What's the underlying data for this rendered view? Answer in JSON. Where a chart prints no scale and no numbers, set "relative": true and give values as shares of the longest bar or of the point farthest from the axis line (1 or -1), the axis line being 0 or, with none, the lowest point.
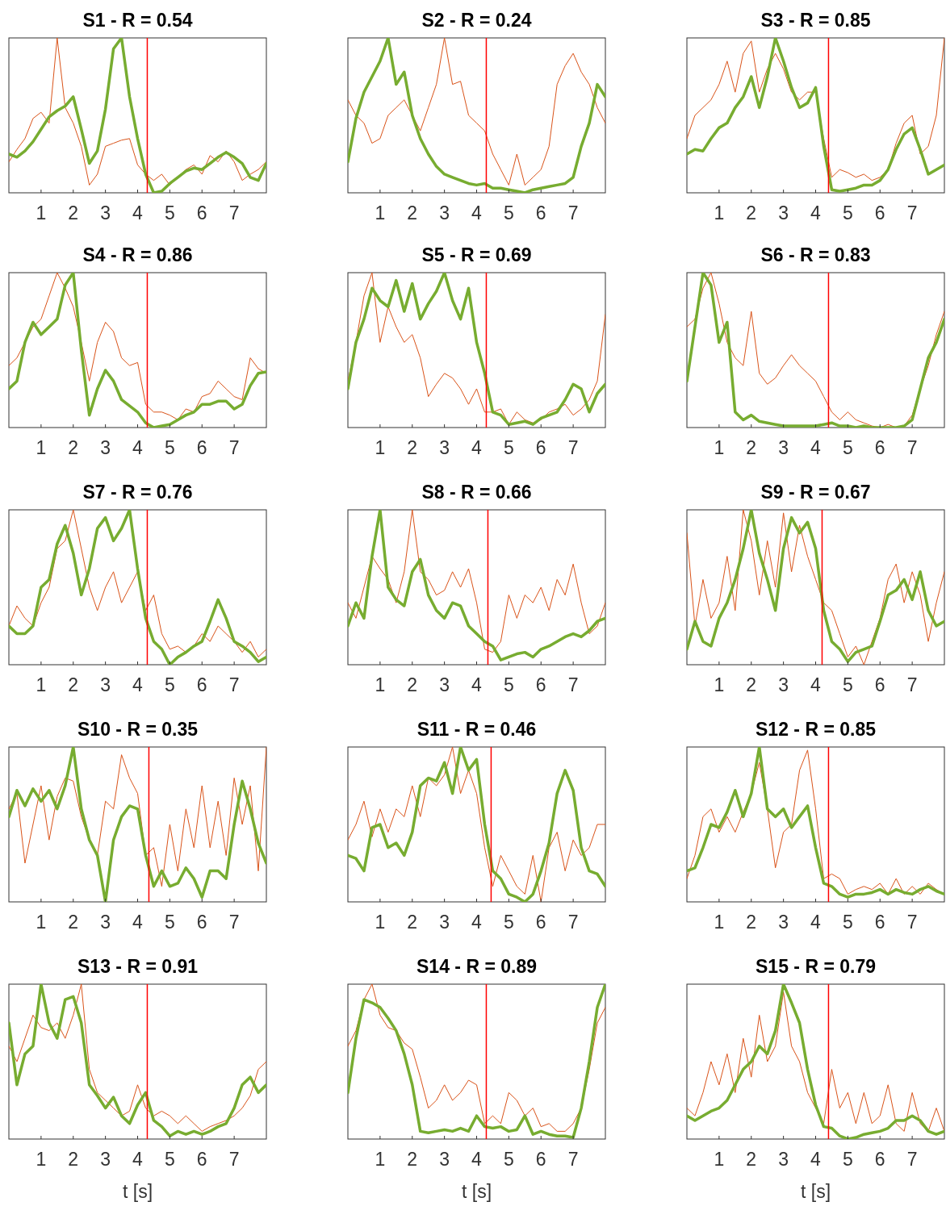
{
  "chart_data": [
    {
      "type": "line",
      "title": "S1 - R = 0.54",
      "relative": true,
      "xlim": [
        0,
        8
      ],
      "xticks": [
        1,
        2,
        3,
        4,
        5,
        6,
        7
      ],
      "ref_lines": [
        {
          "axis": "x",
          "value": 4.3,
          "color": "#ff0000"
        }
      ],
      "x": [
        0,
        0.25,
        0.5,
        0.75,
        1,
        1.25,
        1.5,
        1.75,
        2,
        2.25,
        2.5,
        2.75,
        3,
        3.25,
        3.5,
        3.75,
        4,
        4.25,
        4.5,
        4.75,
        5,
        5.25,
        5.5,
        5.75,
        6,
        6.25,
        6.5,
        6.75,
        7,
        7.25,
        7.5,
        7.75,
        8
      ],
      "series": [
        {
          "color": "#d95319",
          "values": [
            0.2,
            0.28,
            0.35,
            0.48,
            0.52,
            0.45,
            1.0,
            0.55,
            0.45,
            0.3,
            0.05,
            0.12,
            0.3,
            0.32,
            0.34,
            0.35,
            0.18,
            0.12,
            0.08,
            0.12,
            0.05,
            0.1,
            0.15,
            0.18,
            0.12,
            0.24,
            0.2,
            0.27,
            0.2,
            0.08,
            0.12,
            0.15,
            0.2
          ]
        },
        {
          "color": "#77ac30",
          "values": [
            0.25,
            0.23,
            0.27,
            0.33,
            0.41,
            0.49,
            0.53,
            0.56,
            0.62,
            0.41,
            0.19,
            0.27,
            0.54,
            0.93,
            1.0,
            0.62,
            0.35,
            0.12,
            0,
            0.01,
            0.06,
            0.1,
            0.14,
            0.16,
            0.15,
            0.19,
            0.23,
            0.26,
            0.23,
            0.19,
            0.1,
            0.08,
            0.19
          ]
        }
      ]
    },
    {
      "type": "line",
      "title": "S2 - R = 0.24",
      "relative": true,
      "xlim": [
        0,
        8
      ],
      "xticks": [
        1,
        2,
        3,
        4,
        5,
        6,
        7
      ],
      "ref_lines": [
        {
          "axis": "x",
          "value": 4.3,
          "color": "#ff0000"
        }
      ],
      "x": [
        0,
        0.25,
        0.5,
        0.75,
        1,
        1.25,
        1.5,
        1.75,
        2,
        2.25,
        2.5,
        2.75,
        3,
        3.25,
        3.5,
        3.75,
        4,
        4.25,
        4.5,
        4.75,
        5,
        5.25,
        5.5,
        5.75,
        6,
        6.25,
        6.5,
        6.75,
        7,
        7.25,
        7.5,
        7.75,
        8
      ],
      "series": [
        {
          "color": "#d95319",
          "values": [
            0.6,
            0.5,
            0.45,
            0.32,
            0.35,
            0.5,
            0.55,
            0.6,
            0.5,
            0.4,
            0.55,
            0.7,
            1.0,
            0.7,
            0.72,
            0.5,
            0.45,
            0.4,
            0.25,
            0.15,
            0.05,
            0.25,
            0.05,
            0.1,
            0.15,
            0.3,
            0.7,
            0.82,
            0.9,
            0.78,
            0.7,
            0.55,
            0.45
          ]
        },
        {
          "color": "#77ac30",
          "values": [
            0.2,
            0.48,
            0.65,
            0.75,
            0.85,
            1.0,
            0.7,
            0.78,
            0.5,
            0.35,
            0.25,
            0.17,
            0.12,
            0.1,
            0.08,
            0.06,
            0.05,
            0.06,
            0.03,
            0.03,
            0.02,
            0.01,
            0,
            0.02,
            0.03,
            0.04,
            0.05,
            0.06,
            0.1,
            0.3,
            0.45,
            0.7,
            0.62
          ]
        }
      ]
    },
    {
      "type": "line",
      "title": "S3 - R = 0.85",
      "relative": true,
      "xlim": [
        0,
        8
      ],
      "xticks": [
        1,
        2,
        3,
        4,
        5,
        6,
        7
      ],
      "ref_lines": [
        {
          "axis": "x",
          "value": 4.4,
          "color": "#ff0000"
        }
      ],
      "x": [
        0,
        0.25,
        0.5,
        0.75,
        1,
        1.25,
        1.5,
        1.75,
        2,
        2.25,
        2.5,
        2.75,
        3,
        3.25,
        3.5,
        3.75,
        4,
        4.25,
        4.5,
        4.75,
        5,
        5.25,
        5.5,
        5.75,
        6,
        6.25,
        6.5,
        6.75,
        7,
        7.25,
        7.5,
        7.75,
        8
      ],
      "series": [
        {
          "color": "#d95319",
          "values": [
            0.35,
            0.5,
            0.55,
            0.6,
            0.7,
            0.85,
            0.65,
            0.9,
            0.98,
            0.65,
            0.8,
            0.9,
            0.8,
            0.65,
            0.6,
            0.65,
            0.65,
            0.35,
            0.1,
            0.15,
            0.13,
            0.1,
            0.12,
            0.08,
            0.1,
            0.15,
            0.32,
            0.45,
            0.5,
            0.25,
            0.3,
            0.5,
            1.0
          ]
        },
        {
          "color": "#77ac30",
          "values": [
            0.25,
            0.28,
            0.27,
            0.35,
            0.42,
            0.45,
            0.55,
            0.62,
            0.75,
            0.55,
            0.75,
            1.0,
            0.85,
            0.68,
            0.55,
            0.58,
            0.68,
            0.3,
            0.02,
            0.01,
            0.02,
            0.03,
            0.05,
            0.05,
            0.08,
            0.15,
            0.28,
            0.38,
            0.42,
            0.28,
            0.12,
            0.15,
            0.18
          ]
        }
      ]
    },
    {
      "type": "line",
      "title": "S4 - R = 0.86",
      "relative": true,
      "xlim": [
        0,
        8
      ],
      "xticks": [
        1,
        2,
        3,
        4,
        5,
        6,
        7
      ],
      "ref_lines": [
        {
          "axis": "x",
          "value": 4.3,
          "color": "#ff0000"
        }
      ],
      "x": [
        0,
        0.25,
        0.5,
        0.75,
        1,
        1.25,
        1.5,
        1.75,
        2,
        2.25,
        2.5,
        2.75,
        3,
        3.25,
        3.5,
        3.75,
        4,
        4.25,
        4.5,
        4.75,
        5,
        5.25,
        5.5,
        5.75,
        6,
        6.25,
        6.5,
        6.75,
        7,
        7.25,
        7.5,
        7.75,
        8
      ],
      "series": [
        {
          "color": "#d95319",
          "values": [
            0.4,
            0.45,
            0.55,
            0.65,
            0.7,
            0.85,
            1.0,
            0.9,
            0.78,
            0.55,
            0.3,
            0.55,
            0.68,
            0.62,
            0.45,
            0.4,
            0.42,
            0.15,
            0.1,
            0.1,
            0.08,
            0.05,
            0.12,
            0.1,
            0.2,
            0.22,
            0.3,
            0.25,
            0.2,
            0.18,
            0.45,
            0.38,
            0.35
          ]
        },
        {
          "color": "#77ac30",
          "values": [
            0.25,
            0.3,
            0.55,
            0.68,
            0.6,
            0.65,
            0.7,
            0.92,
            1.0,
            0.5,
            0.08,
            0.25,
            0.37,
            0.3,
            0.18,
            0.14,
            0.1,
            0.03,
            0,
            0.01,
            0.02,
            0.05,
            0.08,
            0.1,
            0.15,
            0.15,
            0.17,
            0.17,
            0.12,
            0.15,
            0.27,
            0.35,
            0.36
          ]
        }
      ]
    },
    {
      "type": "line",
      "title": "S5 - R = 0.69",
      "relative": true,
      "xlim": [
        0,
        8
      ],
      "xticks": [
        1,
        2,
        3,
        4,
        5,
        6,
        7
      ],
      "ref_lines": [
        {
          "axis": "x",
          "value": 4.3,
          "color": "#ff0000"
        }
      ],
      "x": [
        0,
        0.25,
        0.5,
        0.75,
        1,
        1.25,
        1.5,
        1.75,
        2,
        2.25,
        2.5,
        2.75,
        3,
        3.25,
        3.5,
        3.75,
        4,
        4.25,
        4.5,
        4.75,
        5,
        5.25,
        5.5,
        5.75,
        6,
        6.25,
        6.5,
        6.75,
        7,
        7.25,
        7.5,
        7.75,
        8
      ],
      "series": [
        {
          "color": "#d95319",
          "values": [
            0.3,
            0.55,
            0.85,
            1.0,
            0.55,
            0.78,
            0.65,
            0.55,
            0.6,
            0.45,
            0.2,
            0.28,
            0.35,
            0.32,
            0.25,
            0.15,
            0.25,
            0.1,
            0.1,
            0.12,
            0.02,
            0.1,
            0.05,
            0.03,
            0.05,
            0.1,
            0.12,
            0.15,
            0.08,
            0.12,
            0.18,
            0.3,
            0.73
          ]
        },
        {
          "color": "#77ac30",
          "values": [
            0.25,
            0.55,
            0.7,
            0.9,
            0.82,
            0.78,
            0.95,
            0.75,
            0.93,
            0.7,
            0.8,
            0.88,
            1.0,
            0.82,
            0.7,
            0.9,
            0.55,
            0.35,
            0.1,
            0.08,
            0.02,
            0.03,
            0.04,
            0.02,
            0.06,
            0.08,
            0.1,
            0.18,
            0.28,
            0.25,
            0.1,
            0.22,
            0.28
          ]
        }
      ]
    },
    {
      "type": "line",
      "title": "S6 - R = 0.83",
      "relative": true,
      "xlim": [
        0,
        8
      ],
      "xticks": [
        1,
        2,
        3,
        4,
        5,
        6,
        7
      ],
      "ref_lines": [
        {
          "axis": "x",
          "value": 4.4,
          "color": "#ff0000"
        }
      ],
      "x": [
        0,
        0.25,
        0.5,
        0.75,
        1,
        1.25,
        1.5,
        1.75,
        2,
        2.25,
        2.5,
        2.75,
        3,
        3.25,
        3.5,
        3.75,
        4,
        4.25,
        4.5,
        4.75,
        5,
        5.25,
        5.5,
        5.75,
        6,
        6.25,
        6.5,
        6.75,
        7,
        7.25,
        7.5,
        7.75,
        8
      ],
      "series": [
        {
          "color": "#d95319",
          "values": [
            0.65,
            0.7,
            0.9,
            1.0,
            0.8,
            0.55,
            0.45,
            0.4,
            0.75,
            0.35,
            0.28,
            0.32,
            0.4,
            0.47,
            0.4,
            0.35,
            0.3,
            0.2,
            0.1,
            0.05,
            0.1,
            0.05,
            0.03,
            0.01,
            0,
            0.02,
            0,
            0.01,
            0.08,
            0.25,
            0.4,
            0.6,
            0.75
          ]
        },
        {
          "color": "#77ac30",
          "values": [
            0.3,
            0.65,
            1.0,
            0.92,
            0.55,
            0.68,
            0.1,
            0.05,
            0.08,
            0.04,
            0.03,
            0.02,
            0.01,
            0.01,
            0.01,
            0.01,
            0.01,
            0.02,
            0.03,
            0.01,
            0.01,
            0,
            0.01,
            0,
            0,
            0,
            0,
            0.01,
            0.05,
            0.25,
            0.45,
            0.55,
            0.7
          ]
        }
      ]
    },
    {
      "type": "line",
      "title": "S7 - R = 0.76",
      "relative": true,
      "xlim": [
        0,
        8
      ],
      "xticks": [
        1,
        2,
        3,
        4,
        5,
        6,
        7
      ],
      "ref_lines": [
        {
          "axis": "x",
          "value": 4.3,
          "color": "#ff0000"
        }
      ],
      "x": [
        0,
        0.25,
        0.5,
        0.75,
        1,
        1.25,
        1.5,
        1.75,
        2,
        2.25,
        2.5,
        2.75,
        3,
        3.25,
        3.5,
        3.75,
        4,
        4.25,
        4.5,
        4.75,
        5,
        5.25,
        5.5,
        5.75,
        6,
        6.25,
        6.5,
        6.75,
        7,
        7.25,
        7.5,
        7.75,
        8
      ],
      "series": [
        {
          "color": "#d95319",
          "values": [
            0.25,
            0.38,
            0.3,
            0.25,
            0.4,
            0.5,
            0.75,
            0.8,
            1.0,
            0.75,
            0.5,
            0.35,
            0.5,
            0.6,
            0.4,
            0.5,
            0.6,
            0.35,
            0.45,
            0.2,
            0.1,
            0.12,
            0.08,
            0.12,
            0.2,
            0.15,
            0.25,
            0.2,
            0.15,
            0.08,
            0.15,
            0.05,
            0.1
          ]
        },
        {
          "color": "#77ac30",
          "values": [
            0.25,
            0.2,
            0.2,
            0.25,
            0.5,
            0.55,
            0.78,
            0.9,
            0.72,
            0.45,
            0.62,
            0.88,
            0.95,
            0.8,
            0.88,
            1.0,
            0.62,
            0.3,
            0.15,
            0.1,
            0,
            0.05,
            0.08,
            0.12,
            0.15,
            0.28,
            0.42,
            0.3,
            0.15,
            0.12,
            0.08,
            0.02,
            0.05
          ]
        }
      ]
    },
    {
      "type": "line",
      "title": "S8 - R = 0.66",
      "relative": true,
      "xlim": [
        0,
        8
      ],
      "xticks": [
        1,
        2,
        3,
        4,
        5,
        6,
        7
      ],
      "ref_lines": [
        {
          "axis": "x",
          "value": 4.35,
          "color": "#ff0000"
        }
      ],
      "x": [
        0,
        0.25,
        0.5,
        0.75,
        1,
        1.25,
        1.5,
        1.75,
        2,
        2.25,
        2.5,
        2.75,
        3,
        3.25,
        3.5,
        3.75,
        4,
        4.25,
        4.5,
        4.75,
        5,
        5.25,
        5.5,
        5.75,
        6,
        6.25,
        6.5,
        6.75,
        7,
        7.25,
        7.5,
        7.75,
        8
      ],
      "series": [
        {
          "color": "#d95319",
          "values": [
            0.4,
            0.3,
            0.5,
            0.7,
            0.62,
            0.55,
            0.4,
            0.6,
            1.0,
            0.6,
            0.55,
            0.45,
            0.48,
            0.6,
            0.5,
            0.62,
            0.4,
            0.1,
            0.08,
            0.15,
            0.45,
            0.3,
            0.45,
            0.4,
            0.5,
            0.35,
            0.55,
            0.45,
            0.65,
            0.4,
            0.2,
            0.25,
            0.4
          ]
        },
        {
          "color": "#77ac30",
          "values": [
            0.25,
            0.4,
            0.3,
            0.7,
            1.0,
            0.5,
            0.42,
            0.38,
            0.6,
            0.68,
            0.45,
            0.35,
            0.3,
            0.4,
            0.38,
            0.25,
            0.2,
            0.15,
            0.12,
            0.03,
            0.05,
            0.07,
            0.08,
            0.05,
            0.1,
            0.12,
            0.15,
            0.18,
            0.2,
            0.18,
            0.22,
            0.28,
            0.3
          ]
        }
      ]
    },
    {
      "type": "line",
      "title": "S9 - R = 0.67",
      "relative": true,
      "xlim": [
        0,
        8
      ],
      "xticks": [
        1,
        2,
        3,
        4,
        5,
        6,
        7
      ],
      "ref_lines": [
        {
          "axis": "x",
          "value": 4.2,
          "color": "#ff0000"
        }
      ],
      "x": [
        0,
        0.25,
        0.5,
        0.75,
        1,
        1.25,
        1.5,
        1.75,
        2,
        2.25,
        2.5,
        2.75,
        3,
        3.25,
        3.5,
        3.75,
        4,
        4.25,
        4.5,
        4.75,
        5,
        5.25,
        5.5,
        5.75,
        6,
        6.25,
        6.5,
        6.75,
        7,
        7.25,
        7.5,
        7.75,
        8
      ],
      "series": [
        {
          "color": "#d95319",
          "values": [
            0.85,
            0.25,
            0.55,
            0.3,
            0.4,
            0.7,
            0.35,
            1.0,
            0.8,
            0.45,
            0.8,
            0.5,
            0.98,
            0.6,
            0.9,
            0.7,
            0.55,
            0.4,
            0.35,
            0.2,
            0.05,
            0.12,
            0,
            0.15,
            0.3,
            0.55,
            0.65,
            0.4,
            0.6,
            0.45,
            0.15,
            0.4,
            0.6
          ]
        },
        {
          "color": "#77ac30",
          "values": [
            0.1,
            0.28,
            0.15,
            0.12,
            0.3,
            0.4,
            0.55,
            0.75,
            1.0,
            0.72,
            0.55,
            0.35,
            0.75,
            0.95,
            0.85,
            0.92,
            0.75,
            0.35,
            0.15,
            0.1,
            0.02,
            0.08,
            0.1,
            0.12,
            0.28,
            0.45,
            0.48,
            0.55,
            0.42,
            0.6,
            0.35,
            0.25,
            0.28
          ]
        }
      ]
    },
    {
      "type": "line",
      "title": "S10 - R = 0.35",
      "relative": true,
      "xlim": [
        0,
        8
      ],
      "xticks": [
        1,
        2,
        3,
        4,
        5,
        6,
        7
      ],
      "ref_lines": [
        {
          "axis": "x",
          "value": 4.35,
          "color": "#ff0000"
        }
      ],
      "x": [
        0,
        0.25,
        0.5,
        0.75,
        1,
        1.25,
        1.5,
        1.75,
        2,
        2.25,
        2.5,
        2.75,
        3,
        3.25,
        3.5,
        3.75,
        4,
        4.25,
        4.5,
        4.75,
        5,
        5.25,
        5.5,
        5.75,
        6,
        6.25,
        6.5,
        6.75,
        7,
        7.25,
        7.5,
        7.75,
        8
      ],
      "series": [
        {
          "color": "#d95319",
          "values": [
            0.6,
            0.7,
            0.25,
            0.5,
            0.75,
            0.4,
            0.68,
            0.8,
            0.78,
            0.55,
            0.4,
            0.3,
            0.65,
            0.6,
            0.95,
            0.8,
            0.7,
            0.3,
            0.35,
            0.1,
            0.5,
            0.2,
            0.6,
            0.35,
            0.75,
            0.35,
            0.65,
            0.3,
            0.8,
            0.5,
            0.75,
            0.2,
            1.0
          ]
        },
        {
          "color": "#77ac30",
          "values": [
            0.55,
            0.72,
            0.62,
            0.73,
            0.65,
            0.72,
            0.6,
            0.75,
            1.0,
            0.6,
            0.4,
            0.3,
            0,
            0.4,
            0.55,
            0.62,
            0.6,
            0.3,
            0.1,
            0.2,
            0.1,
            0.12,
            0.22,
            0.15,
            0.03,
            0.2,
            0.2,
            0.15,
            0.5,
            0.78,
            0.6,
            0.38,
            0.25
          ]
        }
      ]
    },
    {
      "type": "line",
      "title": "S11 - R = 0.46",
      "relative": true,
      "xlim": [
        0,
        8
      ],
      "xticks": [
        1,
        2,
        3,
        4,
        5,
        6,
        7
      ],
      "ref_lines": [
        {
          "axis": "x",
          "value": 4.45,
          "color": "#ff0000"
        }
      ],
      "x": [
        0,
        0.25,
        0.5,
        0.75,
        1,
        1.25,
        1.5,
        1.75,
        2,
        2.25,
        2.5,
        2.75,
        3,
        3.25,
        3.5,
        3.75,
        4,
        4.25,
        4.5,
        4.75,
        5,
        5.25,
        5.5,
        5.75,
        6,
        6.25,
        6.5,
        6.75,
        7,
        7.25,
        7.5,
        7.75,
        8
      ],
      "series": [
        {
          "color": "#d95319",
          "values": [
            0.4,
            0.5,
            0.65,
            0.42,
            0.6,
            0.45,
            0.6,
            0.55,
            0.75,
            0.55,
            0.8,
            0.75,
            0.82,
            1.0,
            0.7,
            0.85,
            0.7,
            0.35,
            0.1,
            0.3,
            0.2,
            0.1,
            0.05,
            0.3,
            0,
            0.35,
            0.45,
            0.2,
            0.4,
            0.3,
            0.35,
            0.5,
            0.5
          ]
        },
        {
          "color": "#77ac30",
          "values": [
            0.3,
            0.28,
            0.2,
            0.48,
            0.5,
            0.35,
            0.38,
            0.3,
            0.45,
            0.75,
            0.8,
            0.78,
            0.9,
            0.7,
            1.0,
            0.85,
            0.92,
            0.5,
            0.2,
            0.15,
            0.05,
            0.03,
            0,
            0.05,
            0.2,
            0.38,
            0.7,
            0.85,
            0.72,
            0.35,
            0.2,
            0.18,
            0.1
          ]
        }
      ]
    },
    {
      "type": "line",
      "title": "S12 - R = 0.85",
      "relative": true,
      "xlim": [
        0,
        8
      ],
      "xticks": [
        1,
        2,
        3,
        4,
        5,
        6,
        7
      ],
      "ref_lines": [
        {
          "axis": "x",
          "value": 4.4,
          "color": "#ff0000"
        }
      ],
      "x": [
        0,
        0.25,
        0.5,
        0.75,
        1,
        1.25,
        1.5,
        1.75,
        2,
        2.25,
        2.5,
        2.75,
        3,
        3.25,
        3.5,
        3.75,
        4,
        4.25,
        4.5,
        4.75,
        5,
        5.25,
        5.5,
        5.75,
        6,
        6.25,
        6.5,
        6.75,
        7,
        7.25,
        7.5,
        7.75,
        8
      ],
      "series": [
        {
          "color": "#d95319",
          "values": [
            0.15,
            0.3,
            0.55,
            0.6,
            0.45,
            0.55,
            0.45,
            0.58,
            0.7,
            0.9,
            0.6,
            0.22,
            0.45,
            0.5,
            0.85,
            0.98,
            0.6,
            0.15,
            0.18,
            0.15,
            0.05,
            0.08,
            0.1,
            0.08,
            0.12,
            0.05,
            0.15,
            0.05,
            0.1,
            0.05,
            0.12,
            0.08,
            0.05
          ]
        },
        {
          "color": "#77ac30",
          "values": [
            0.2,
            0.22,
            0.35,
            0.5,
            0.48,
            0.58,
            0.72,
            0.55,
            0.7,
            1.0,
            0.6,
            0.55,
            0.6,
            0.48,
            0.55,
            0.62,
            0.35,
            0.12,
            0.1,
            0.05,
            0.03,
            0.05,
            0.05,
            0.06,
            0.08,
            0.05,
            0.08,
            0.06,
            0.05,
            0.08,
            0.1,
            0.07,
            0.05
          ]
        }
      ]
    },
    {
      "type": "line",
      "title": "S13 - R = 0.91",
      "xlabel": "t [s]",
      "relative": true,
      "xlim": [
        0,
        8
      ],
      "xticks": [
        1,
        2,
        3,
        4,
        5,
        6,
        7
      ],
      "ref_lines": [
        {
          "axis": "x",
          "value": 4.3,
          "color": "#ff0000"
        }
      ],
      "x": [
        0,
        0.25,
        0.5,
        0.75,
        1,
        1.25,
        1.5,
        1.75,
        2,
        2.25,
        2.5,
        2.75,
        3,
        3.25,
        3.5,
        3.75,
        4,
        4.25,
        4.5,
        4.75,
        5,
        5.25,
        5.5,
        5.75,
        6,
        6.25,
        6.5,
        6.75,
        7,
        7.25,
        7.5,
        7.75,
        8
      ],
      "series": [
        {
          "color": "#d95319",
          "values": [
            0.6,
            0.5,
            0.65,
            0.8,
            0.72,
            0.7,
            0.75,
            0.65,
            0.8,
            1.0,
            0.45,
            0.3,
            0.25,
            0.2,
            0.15,
            0.18,
            0.35,
            0.2,
            0.15,
            0.18,
            0.15,
            0.1,
            0.15,
            0.1,
            0.05,
            0.08,
            0.1,
            0.12,
            0.15,
            0.2,
            0.28,
            0.45,
            0.5
          ]
        },
        {
          "color": "#77ac30",
          "values": [
            0.75,
            0.35,
            0.55,
            0.6,
            1.0,
            0.75,
            0.65,
            0.9,
            0.92,
            0.75,
            0.35,
            0.28,
            0.2,
            0.27,
            0.15,
            0.1,
            0.22,
            0.3,
            0.12,
            0.08,
            0.02,
            0.05,
            0.03,
            0.05,
            0.03,
            0.05,
            0.08,
            0.1,
            0.2,
            0.35,
            0.4,
            0.3,
            0.35
          ]
        }
      ]
    },
    {
      "type": "line",
      "title": "S14 - R = 0.89",
      "xlabel": "t [s]",
      "relative": true,
      "xlim": [
        0,
        8
      ],
      "xticks": [
        1,
        2,
        3,
        4,
        5,
        6,
        7
      ],
      "ref_lines": [
        {
          "axis": "x",
          "value": 4.3,
          "color": "#ff0000"
        }
      ],
      "x": [
        0,
        0.25,
        0.5,
        0.75,
        1,
        1.25,
        1.5,
        1.75,
        2,
        2.25,
        2.5,
        2.75,
        3,
        3.25,
        3.5,
        3.75,
        4,
        4.25,
        4.5,
        4.75,
        5,
        5.25,
        5.5,
        5.75,
        6,
        6.25,
        6.5,
        6.75,
        7,
        7.25,
        7.5,
        7.75,
        8
      ],
      "series": [
        {
          "color": "#d95319",
          "values": [
            0.6,
            0.7,
            0.9,
            1.0,
            0.8,
            0.72,
            0.7,
            0.62,
            0.58,
            0.4,
            0.2,
            0.25,
            0.35,
            0.25,
            0.3,
            0.38,
            0.35,
            0.1,
            0.15,
            0.1,
            0.3,
            0.25,
            0.15,
            0.2,
            0.08,
            0.1,
            0.05,
            0.05,
            0.1,
            0.2,
            0.45,
            0.75,
            0.85
          ]
        },
        {
          "color": "#77ac30",
          "values": [
            0.3,
            0.65,
            0.9,
            0.88,
            0.85,
            0.78,
            0.7,
            0.55,
            0.35,
            0.05,
            0.04,
            0.05,
            0.06,
            0.05,
            0.07,
            0.05,
            0.15,
            0.08,
            0.07,
            0.08,
            0.05,
            0.06,
            0.15,
            0.03,
            0.05,
            0.03,
            0.02,
            0.02,
            0.01,
            0.2,
            0.5,
            0.85,
            1.0
          ]
        }
      ]
    },
    {
      "type": "line",
      "title": "S15 - R = 0.79",
      "xlabel": "t [s]",
      "relative": true,
      "xlim": [
        0,
        8
      ],
      "xticks": [
        1,
        2,
        3,
        4,
        5,
        6,
        7
      ],
      "ref_lines": [
        {
          "axis": "x",
          "value": 4.4,
          "color": "#ff0000"
        }
      ],
      "x": [
        0,
        0.25,
        0.5,
        0.75,
        1,
        1.25,
        1.5,
        1.75,
        2,
        2.25,
        2.5,
        2.75,
        3,
        3.25,
        3.5,
        3.75,
        4,
        4.25,
        4.5,
        4.75,
        5,
        5.25,
        5.5,
        5.75,
        6,
        6.25,
        6.5,
        6.75,
        7,
        7.25,
        7.5,
        7.75,
        8
      ],
      "series": [
        {
          "color": "#d95319",
          "values": [
            0.2,
            0.15,
            0.3,
            0.5,
            0.35,
            0.55,
            0.3,
            0.65,
            0.4,
            0.8,
            0.5,
            0.6,
            0.95,
            0.6,
            0.5,
            0.3,
            0.2,
            0.1,
            0.45,
            0.2,
            0.3,
            0.1,
            0.3,
            0.1,
            0.15,
            0.35,
            0.1,
            0.05,
            0.3,
            0.1,
            0.05,
            0.2,
            0.05
          ]
        },
        {
          "color": "#77ac30",
          "values": [
            0.15,
            0.12,
            0.15,
            0.18,
            0.2,
            0.25,
            0.35,
            0.45,
            0.5,
            0.6,
            0.55,
            0.7,
            1.0,
            0.88,
            0.75,
            0.45,
            0.22,
            0.08,
            0.07,
            0.02,
            0,
            0.01,
            0.03,
            0.04,
            0.05,
            0.07,
            0.12,
            0.12,
            0.15,
            0.12,
            0.05,
            0.03,
            0.05
          ]
        }
      ]
    }
  ]
}
